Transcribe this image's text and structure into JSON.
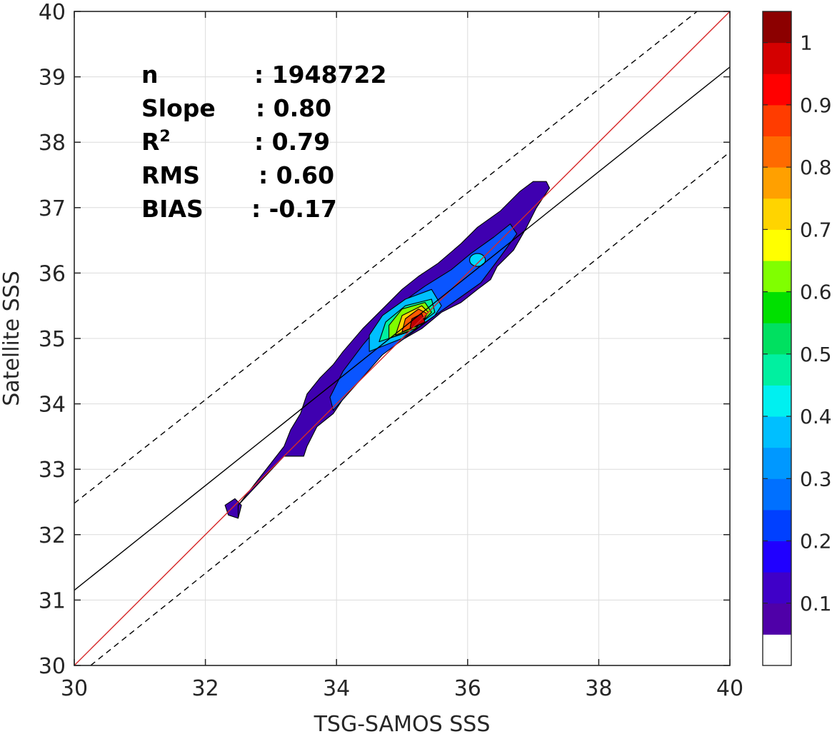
{
  "chart_data": {
    "type": "filled-contour density scatter",
    "xlabel": "TSG-SAMOS SSS",
    "ylabel": "Satellite SSS",
    "xlim": [
      30,
      40
    ],
    "ylim": [
      30,
      40
    ],
    "x_ticks": [
      "30",
      "32",
      "34",
      "36",
      "38",
      "40"
    ],
    "y_ticks": [
      "30",
      "31",
      "32",
      "33",
      "34",
      "35",
      "36",
      "37",
      "38",
      "39",
      "40"
    ],
    "grid": true,
    "stats": [
      {
        "key": "n",
        "value": ": 1948722"
      },
      {
        "key": "Slope",
        "value": ": 0.80"
      },
      {
        "key": "R",
        "sup": "2",
        "value": ": 0.79"
      },
      {
        "key": "RMS",
        "value": ": 0.60"
      },
      {
        "key": "BIAS",
        "value": ": -0.17"
      }
    ],
    "reference_lines": [
      {
        "name": "one-to-one",
        "color": "#d62728",
        "style": "solid",
        "points": [
          [
            30,
            30
          ],
          [
            40,
            40
          ]
        ]
      },
      {
        "name": "regression fit",
        "color": "#000000",
        "style": "solid",
        "points": [
          [
            30,
            31.15
          ],
          [
            40,
            39.15
          ]
        ]
      },
      {
        "name": "upper bound",
        "color": "#000000",
        "style": "dashed",
        "points": [
          [
            30,
            32.48
          ],
          [
            39.5,
            40
          ]
        ]
      },
      {
        "name": "lower bound",
        "color": "#000000",
        "style": "dashed",
        "points": [
          [
            30.25,
            30
          ],
          [
            40,
            37.85
          ]
        ]
      }
    ],
    "density_peak": {
      "x": 35.25,
      "y": 35.2,
      "level": 1.0
    },
    "contour_levels": [
      {
        "level": 0.05,
        "color": "#3f00b0",
        "polygon": [
          [
            32.5,
            32.25
          ],
          [
            32.35,
            32.3
          ],
          [
            32.3,
            32.45
          ],
          [
            32.45,
            32.55
          ],
          [
            32.55,
            32.45
          ],
          [
            32.5,
            32.25
          ],
          [
            32.5,
            32.45
          ],
          [
            33.2,
            33.2
          ],
          [
            33.5,
            33.2
          ],
          [
            33.55,
            33.35
          ],
          [
            33.7,
            33.65
          ],
          [
            33.95,
            33.85
          ],
          [
            34.15,
            34.15
          ],
          [
            34.3,
            34.45
          ],
          [
            34.55,
            34.7
          ],
          [
            34.95,
            34.95
          ],
          [
            35.3,
            35.15
          ],
          [
            35.6,
            35.4
          ],
          [
            35.9,
            35.55
          ],
          [
            36.15,
            35.75
          ],
          [
            36.35,
            35.9
          ],
          [
            36.45,
            36.1
          ],
          [
            36.7,
            36.35
          ],
          [
            36.9,
            36.7
          ],
          [
            37.05,
            37.0
          ],
          [
            37.25,
            37.3
          ],
          [
            37.2,
            37.4
          ],
          [
            37.0,
            37.4
          ],
          [
            36.8,
            37.25
          ],
          [
            36.5,
            36.95
          ],
          [
            36.15,
            36.7
          ],
          [
            35.9,
            36.45
          ],
          [
            35.55,
            36.15
          ],
          [
            35.25,
            35.95
          ],
          [
            35.0,
            35.75
          ],
          [
            34.7,
            35.45
          ],
          [
            34.4,
            35.15
          ],
          [
            34.1,
            34.8
          ],
          [
            33.95,
            34.6
          ],
          [
            33.75,
            34.4
          ],
          [
            33.55,
            34.15
          ],
          [
            33.45,
            33.85
          ],
          [
            33.3,
            33.6
          ],
          [
            33.2,
            33.35
          ],
          [
            32.5,
            32.45
          ]
        ]
      },
      {
        "level": 0.1,
        "color": "#0a55ff",
        "polygon": [
          [
            33.95,
            33.9
          ],
          [
            34.35,
            34.35
          ],
          [
            34.7,
            34.75
          ],
          [
            35.1,
            35.05
          ],
          [
            35.5,
            35.35
          ],
          [
            35.85,
            35.6
          ],
          [
            36.2,
            35.85
          ],
          [
            36.5,
            36.25
          ],
          [
            36.75,
            36.6
          ],
          [
            36.65,
            36.75
          ],
          [
            36.4,
            36.55
          ],
          [
            36.05,
            36.3
          ],
          [
            35.75,
            36.05
          ],
          [
            35.35,
            35.8
          ],
          [
            35.0,
            35.55
          ],
          [
            34.7,
            35.25
          ],
          [
            34.4,
            34.9
          ],
          [
            34.1,
            34.5
          ],
          [
            33.9,
            34.1
          ],
          [
            33.95,
            33.9
          ]
        ]
      },
      {
        "level": 0.3,
        "color": "#00bfff",
        "polygon": [
          [
            34.5,
            34.8
          ],
          [
            35.0,
            35.0
          ],
          [
            35.5,
            35.35
          ],
          [
            35.6,
            35.5
          ],
          [
            35.45,
            35.75
          ],
          [
            35.05,
            35.6
          ],
          [
            34.7,
            35.35
          ],
          [
            34.5,
            35.05
          ],
          [
            34.5,
            34.8
          ]
        ]
      },
      {
        "level": 0.45,
        "color": "#00f0a0",
        "polygon": [
          [
            34.65,
            34.95
          ],
          [
            35.1,
            35.1
          ],
          [
            35.5,
            35.4
          ],
          [
            35.45,
            35.6
          ],
          [
            35.05,
            35.5
          ],
          [
            34.75,
            35.25
          ],
          [
            34.65,
            34.95
          ]
        ]
      },
      {
        "level": 0.55,
        "color": "#80ff00",
        "polygon": [
          [
            34.8,
            35.0
          ],
          [
            35.2,
            35.15
          ],
          [
            35.45,
            35.4
          ],
          [
            35.35,
            35.55
          ],
          [
            35.0,
            35.45
          ],
          [
            34.8,
            35.2
          ],
          [
            34.8,
            35.0
          ]
        ]
      },
      {
        "level": 0.65,
        "color": "#ffd400",
        "polygon": [
          [
            34.9,
            35.05
          ],
          [
            35.25,
            35.2
          ],
          [
            35.4,
            35.4
          ],
          [
            35.3,
            35.5
          ],
          [
            35.0,
            35.35
          ],
          [
            34.9,
            35.05
          ]
        ]
      },
      {
        "level": 0.8,
        "color": "#ff5a00",
        "polygon": [
          [
            35.0,
            35.1
          ],
          [
            35.3,
            35.22
          ],
          [
            35.38,
            35.38
          ],
          [
            35.25,
            35.45
          ],
          [
            35.05,
            35.3
          ],
          [
            35.0,
            35.1
          ]
        ]
      },
      {
        "level": 0.95,
        "color": "#c00000",
        "polygon": [
          [
            35.12,
            35.15
          ],
          [
            35.35,
            35.25
          ],
          [
            35.3,
            35.38
          ],
          [
            35.15,
            35.3
          ],
          [
            35.12,
            35.15
          ]
        ]
      }
    ],
    "secondary_blob": {
      "level": 0.4,
      "color": "#00d8ff",
      "center": [
        36.15,
        36.2
      ]
    },
    "colorbar": {
      "ticks": [
        "0.1",
        "0.2",
        "0.3",
        "0.4",
        "0.5",
        "0.6",
        "0.7",
        "0.8",
        "0.9",
        "1"
      ],
      "colors": [
        "#ffffff",
        "#4f00a8",
        "#3f00c8",
        "#2000ff",
        "#0040ff",
        "#0070ff",
        "#0098ff",
        "#00bfff",
        "#00f0f0",
        "#00f0a0",
        "#00e060",
        "#00e000",
        "#80ff00",
        "#ffff00",
        "#ffd400",
        "#ffa000",
        "#ff6a00",
        "#ff3c00",
        "#ff0000",
        "#d40000",
        "#8c0000"
      ]
    }
  }
}
